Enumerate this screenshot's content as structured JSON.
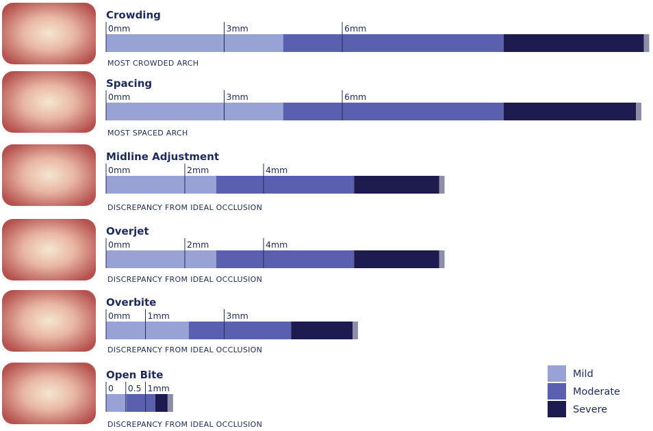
{
  "legend": [
    {
      "name": "Mild",
      "color": "#98a2d4"
    },
    {
      "name": "Moderate",
      "color": "#5a5fae"
    },
    {
      "name": "Severe",
      "color": "#1c1a4f"
    }
  ],
  "rows": [
    {
      "title": "Crowding",
      "ticks": [
        {
          "value": 0,
          "label": "0mm"
        },
        {
          "value": 3,
          "label": "3mm"
        },
        {
          "value": 6,
          "label": "6mm"
        }
      ],
      "segments": [
        4.5,
        5.6,
        3.7
      ],
      "caption": "MOST CROWDED ARCH"
    },
    {
      "title": "Spacing",
      "ticks": [
        {
          "value": 0,
          "label": "0mm"
        },
        {
          "value": 3,
          "label": "3mm"
        },
        {
          "value": 6,
          "label": "6mm"
        }
      ],
      "segments": [
        4.5,
        5.6,
        3.5
      ],
      "caption": "MOST SPACED ARCH"
    },
    {
      "title": "Midline Adjustment",
      "ticks": [
        {
          "value": 0,
          "label": "0mm"
        },
        {
          "value": 2,
          "label": "2mm"
        },
        {
          "value": 4,
          "label": "4mm"
        }
      ],
      "segments": [
        2.8,
        3.5,
        2.3
      ],
      "caption": "DISCREPANCY FROM IDEAL OCCLUSION"
    },
    {
      "title": "Overjet",
      "ticks": [
        {
          "value": 0,
          "label": "0mm"
        },
        {
          "value": 2,
          "label": "2mm"
        },
        {
          "value": 4,
          "label": "4mm"
        }
      ],
      "segments": [
        2.8,
        3.5,
        2.3
      ],
      "caption": "DISCREPANCY FROM IDEAL OCCLUSION"
    },
    {
      "title": "Overbite",
      "ticks": [
        {
          "value": 0,
          "label": "0mm"
        },
        {
          "value": 1,
          "label": "1mm"
        },
        {
          "value": 3,
          "label": "3mm"
        }
      ],
      "segments": [
        2.1,
        2.6,
        1.7
      ],
      "caption": "DISCREPANCY FROM IDEAL OCCLUSION"
    },
    {
      "title": "Open Bite",
      "ticks": [
        0,
        0.5,
        {
          "value": 1,
          "label": "1mm"
        }
      ],
      "segments": [
        0.52,
        0.73,
        0.45
      ],
      "caption": "DISCREPANCY FROM IDEAL OCCLUSION"
    }
  ]
}
